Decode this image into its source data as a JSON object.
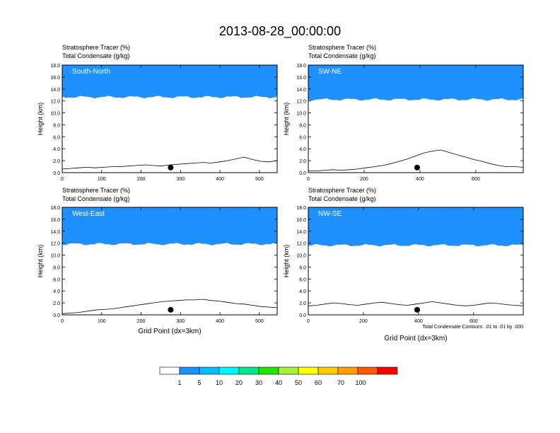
{
  "title": "2013-08-28_00:00:00",
  "contour_note": "Total Condensate Contours: .01 to .01 by .000",
  "colorbar": {
    "labels": [
      "1",
      "5",
      "10",
      "20",
      "30",
      "40",
      "50",
      "60",
      "70",
      "100"
    ],
    "colors": [
      "#ffffff",
      "#1e90ff",
      "#00bfff",
      "#00f5ff",
      "#00e88a",
      "#22e600",
      "#a6f23a",
      "#ffff00",
      "#ffcc00",
      "#ffa000",
      "#ff5a00",
      "#ff0000"
    ]
  },
  "chart_data": [
    {
      "type": "heatmap",
      "panel": "South-North",
      "subtitle1": "Stratosphere Tracer   (%)",
      "subtitle2": "Total Condensate   (g/kg)",
      "ylabel": "Height (km)",
      "xlabel": "",
      "xlim": [
        0,
        545
      ],
      "ylim": [
        0,
        18
      ],
      "xticks": [
        "0",
        "100",
        "200",
        "300",
        "400",
        "500"
      ],
      "yticks": [
        "0.0",
        "2.0",
        "4.0",
        "6.0",
        "8.0",
        "10.0",
        "12.0",
        "14.0",
        "16.0",
        "18.0"
      ],
      "marker_x": 275,
      "tracer_base_km": 13.0,
      "terrain_km": [
        0.6,
        0.7,
        0.8,
        0.9,
        0.8,
        0.9,
        1.0,
        1.0,
        1.1,
        1.2,
        1.3,
        1.2,
        1.1,
        1.3,
        1.4,
        1.5,
        1.6,
        1.7,
        1.6,
        1.8,
        2.0,
        2.3,
        2.6,
        2.2,
        1.9,
        1.8,
        2.0
      ]
    },
    {
      "type": "heatmap",
      "panel": "SW-NE",
      "subtitle1": "Stratosphere Tracer   (%)",
      "subtitle2": "Total Condensate   (g/kg)",
      "ylabel": "Height (km)",
      "xlabel": "",
      "xlim": [
        0,
        770
      ],
      "ylim": [
        0,
        18
      ],
      "xticks": [
        "0",
        "200",
        "400",
        "600"
      ],
      "yticks": [
        "0.0",
        "2.0",
        "4.0",
        "6.0",
        "8.0",
        "10.0",
        "12.0",
        "14.0",
        "16.0",
        "18.0"
      ],
      "marker_x": 390,
      "tracer_base_km": 12.6,
      "terrain_km": [
        0.3,
        0.3,
        0.4,
        0.5,
        0.4,
        0.5,
        0.6,
        0.8,
        1.0,
        1.2,
        1.5,
        1.9,
        2.3,
        2.8,
        3.3,
        3.6,
        3.8,
        3.4,
        3.0,
        2.6,
        2.2,
        1.9,
        1.5,
        1.2,
        1.0,
        1.0,
        0.9
      ]
    },
    {
      "type": "heatmap",
      "panel": "West-East",
      "subtitle1": "Stratosphere Tracer   (%)",
      "subtitle2": "Total Condensate   (g/kg)",
      "ylabel": "Height (km)",
      "xlabel": "Grid Point (dx=3km)",
      "xlim": [
        0,
        545
      ],
      "ylim": [
        0,
        18
      ],
      "xticks": [
        "0",
        "100",
        "200",
        "300",
        "400",
        "500"
      ],
      "yticks": [
        "0.0",
        "2.0",
        "4.0",
        "6.0",
        "8.0",
        "10.0",
        "12.0",
        "14.0",
        "16.0",
        "18.0"
      ],
      "marker_x": 275,
      "tracer_base_km": 12.2,
      "terrain_km": [
        0.2,
        0.3,
        0.4,
        0.6,
        0.8,
        0.9,
        1.0,
        1.2,
        1.4,
        1.6,
        1.8,
        2.0,
        2.2,
        2.3,
        2.4,
        2.5,
        2.5,
        2.6,
        2.4,
        2.3,
        2.1,
        1.9,
        1.8,
        1.6,
        1.4,
        1.3,
        1.2
      ]
    },
    {
      "type": "heatmap",
      "panel": "NW-SE",
      "subtitle1": "Stratosphere Tracer   (%)",
      "subtitle2": "Total Condensate   (g/kg)",
      "ylabel": "Height (km)",
      "xlabel": "Grid Point (dx=3km)",
      "xlim": [
        0,
        780
      ],
      "ylim": [
        0,
        18
      ],
      "xticks": [
        "0",
        "200",
        "400",
        "600"
      ],
      "yticks": [
        "0.0",
        "2.0",
        "4.0",
        "6.0",
        "8.0",
        "10.0",
        "12.0",
        "14.0",
        "16.0",
        "18.0"
      ],
      "marker_x": 395,
      "tracer_base_km": 12.0,
      "terrain_km": [
        1.5,
        1.6,
        1.8,
        2.0,
        1.9,
        1.7,
        1.6,
        1.8,
        2.0,
        2.1,
        1.9,
        1.7,
        1.6,
        1.8,
        2.0,
        2.2,
        2.0,
        1.8,
        1.6,
        1.5,
        1.6,
        1.8,
        2.0,
        1.9,
        1.7,
        1.6,
        1.5
      ]
    }
  ]
}
